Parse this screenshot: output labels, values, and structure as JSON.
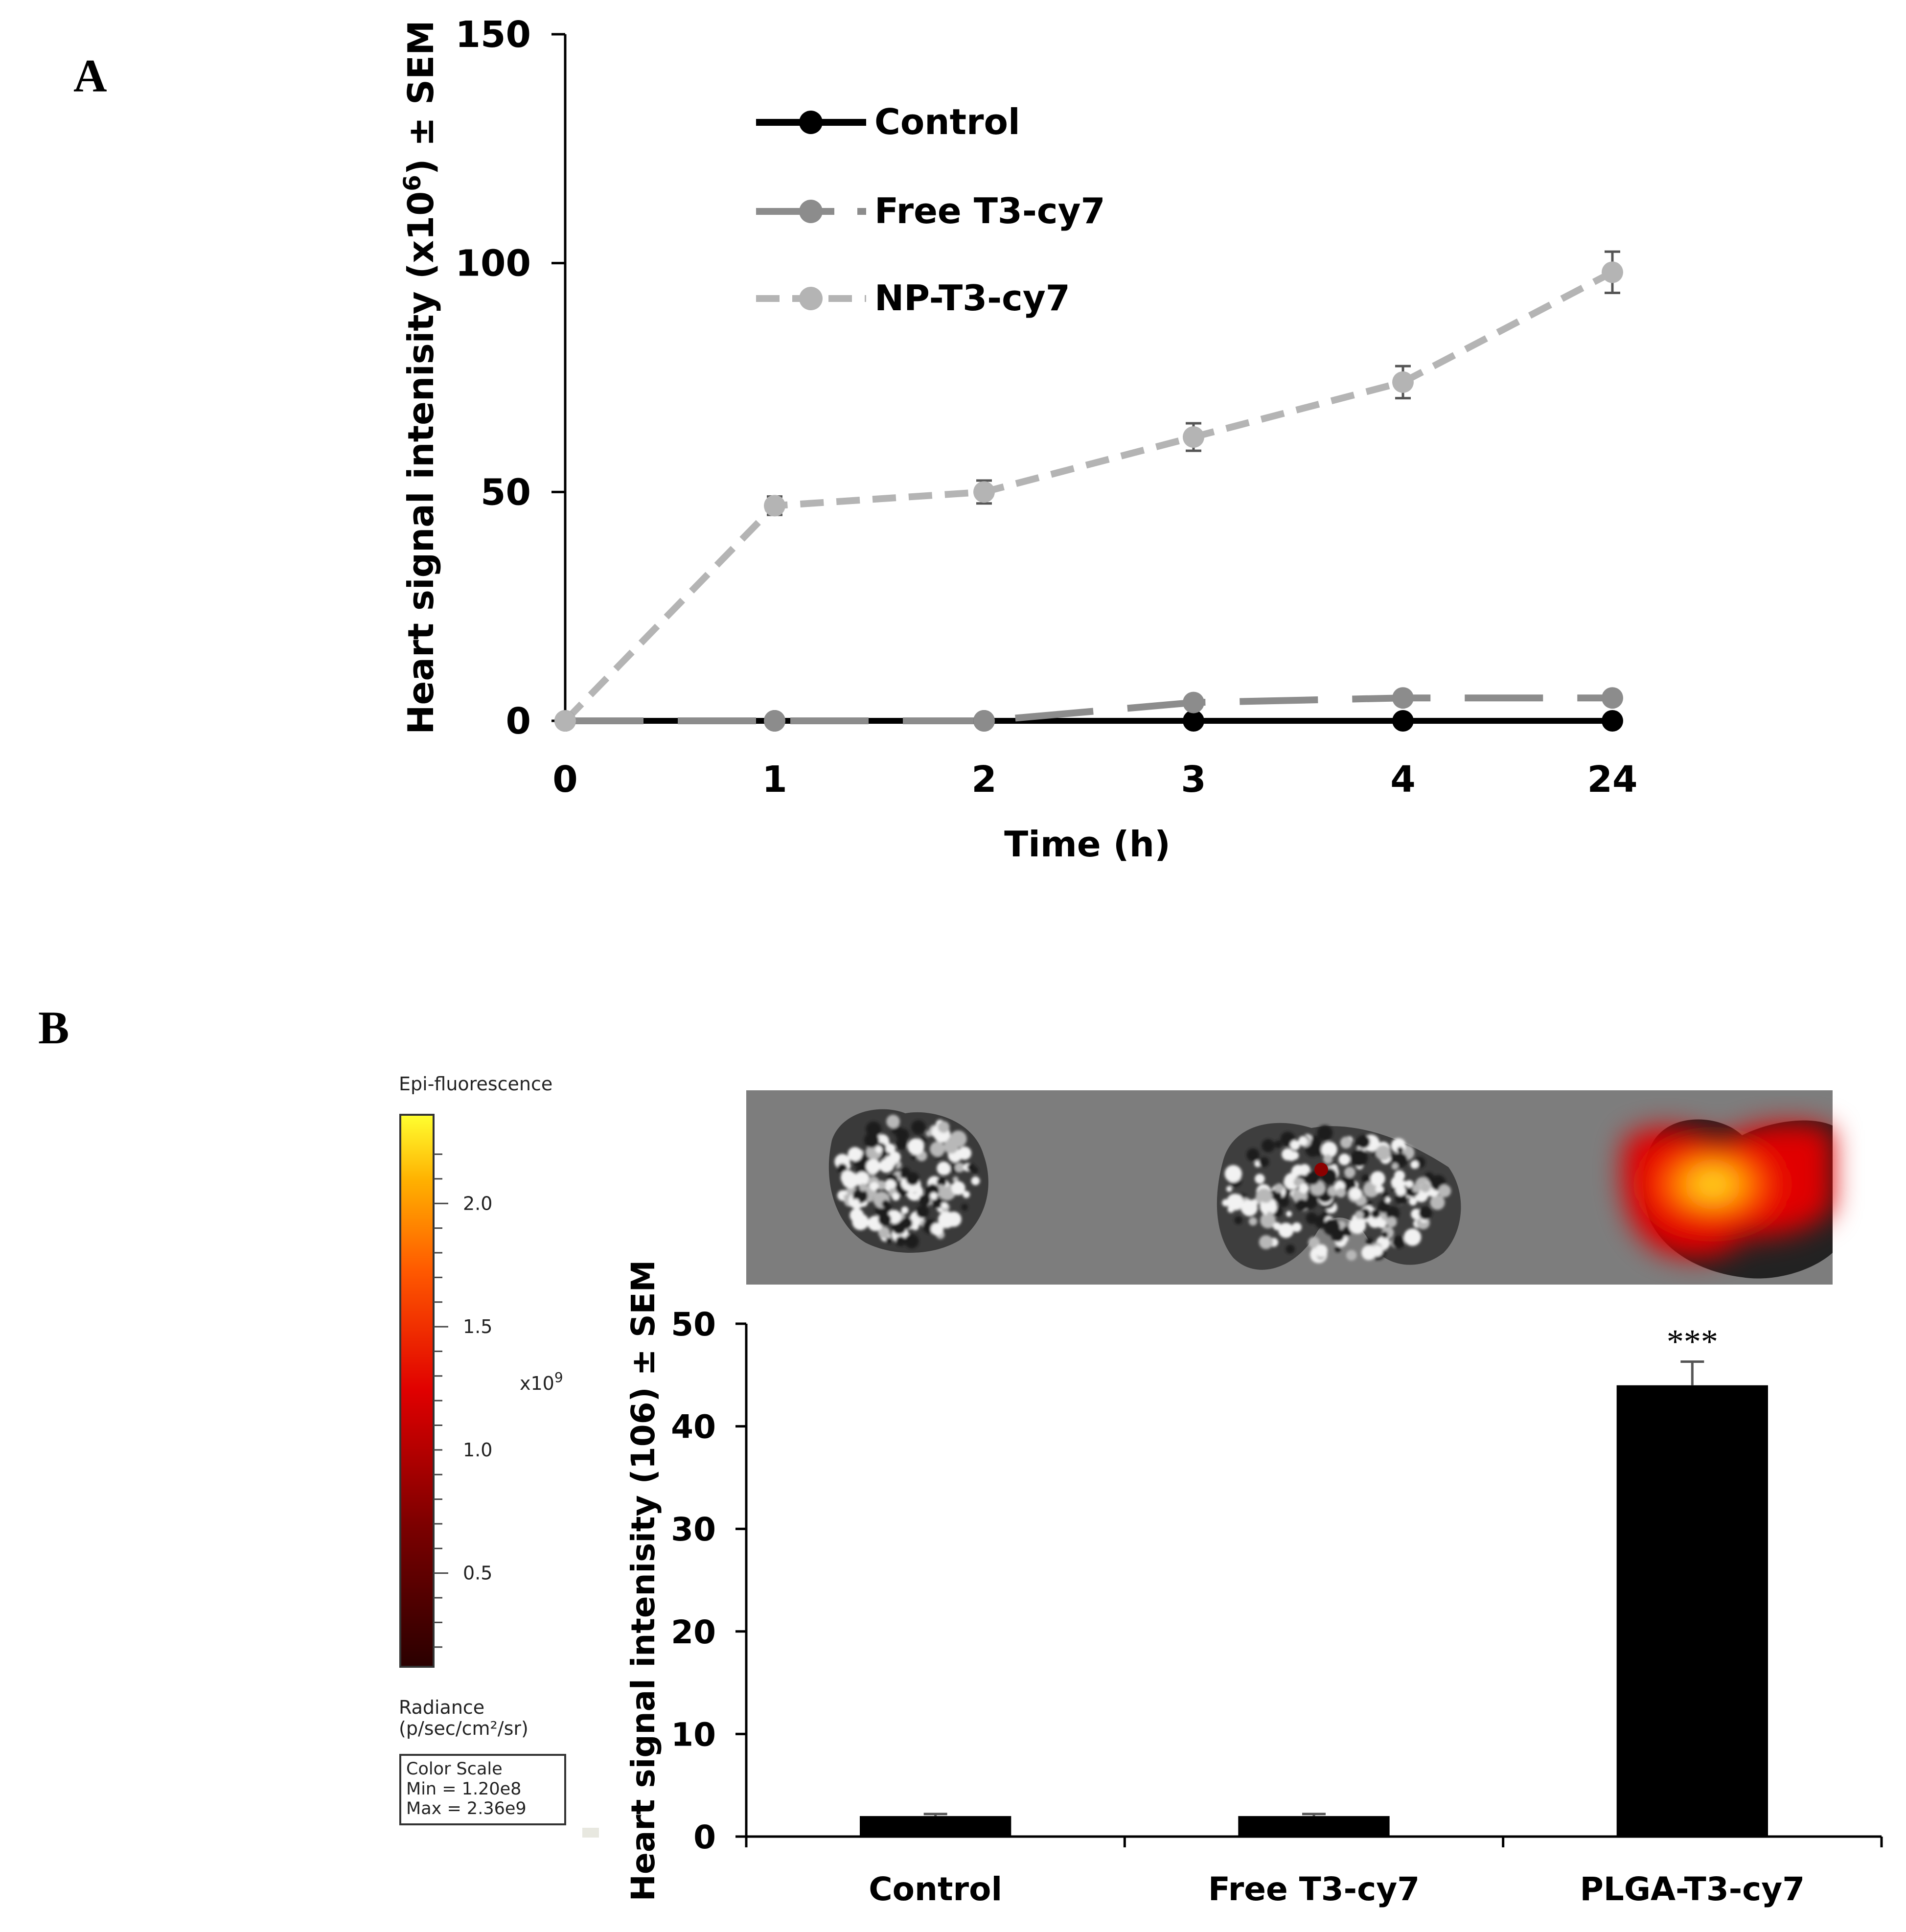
{
  "panels": {
    "a_label": "A",
    "b_label": "B"
  },
  "colors": {
    "control": "#000000",
    "free": "#8c8c8c",
    "np": "#b4b4b4",
    "bar": "#000000",
    "image_bg": "#7d7d7d"
  },
  "chart_data": [
    {
      "type": "line",
      "title": "",
      "xlabel": "Time (h)",
      "ylabel": "Heart signal intenisity (x10",
      "ylabel_sup": "6",
      "ylabel_tail": ") ± SEM",
      "categories": [
        "0",
        "1",
        "2",
        "3",
        "4",
        "24"
      ],
      "ylim": [
        0,
        150
      ],
      "yticks": [
        "0",
        "50",
        "100",
        "150"
      ],
      "legend_position": "top-left",
      "series": [
        {
          "name": "Control",
          "style": "solid",
          "values": [
            0,
            0,
            0,
            0,
            0,
            0
          ],
          "errors": [
            0,
            0,
            0,
            0,
            0,
            0
          ]
        },
        {
          "name": "Free T3-cy7",
          "style": "long-dash",
          "values": [
            0,
            0,
            0,
            4,
            5,
            5
          ],
          "errors": [
            0,
            0,
            0,
            0,
            0,
            0
          ]
        },
        {
          "name": "NP-T3-cy7",
          "style": "dash",
          "values": [
            0,
            47,
            50,
            62,
            74,
            98
          ],
          "errors": [
            0,
            2,
            2.5,
            3,
            3.5,
            4.5
          ]
        }
      ]
    },
    {
      "type": "bar",
      "title": "",
      "xlabel": "",
      "ylabel": "Heart signal intenisity (106) ± SEM",
      "categories": [
        "Control",
        "Free T3-cy7",
        "PLGA-T3-cy7"
      ],
      "values": [
        2,
        2,
        44
      ],
      "errors": [
        0.2,
        0.2,
        2.3
      ],
      "annotations": [
        "",
        "",
        "***"
      ],
      "ylim": [
        0,
        50
      ],
      "yticks": [
        "0",
        "10",
        "20",
        "30",
        "40",
        "50"
      ]
    }
  ],
  "color_scale": {
    "title": "Epi-fluorescence",
    "ticks": [
      "2.0",
      "1.5",
      "1.0",
      "0.5"
    ],
    "tick_values": [
      2.0,
      1.5,
      1.0,
      0.5
    ],
    "range": [
      0.12,
      2.36
    ],
    "multiplier": "x10",
    "multiplier_sup": "9",
    "unit_line1": "Radiance",
    "unit_line2": "(p/sec/cm²/sr)",
    "box_title": "Color Scale",
    "box_min": "Min = 1.20e8",
    "box_max": "Max = 2.36e9"
  }
}
